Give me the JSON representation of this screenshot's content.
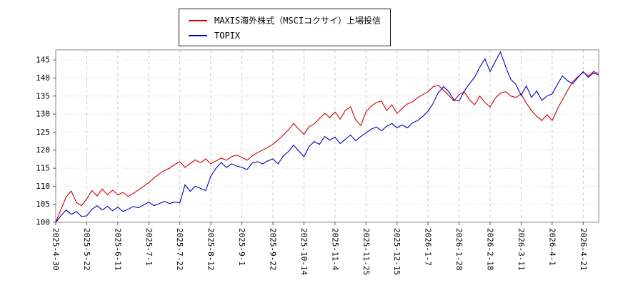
{
  "chart_data": {
    "type": "line",
    "title": "",
    "xlabel": "",
    "ylabel": "",
    "grid": true,
    "legend_position": "top-center",
    "ylim": [
      100,
      147.8
    ],
    "y_ticks": [
      100,
      105,
      110,
      115,
      120,
      125,
      130,
      135,
      140,
      145
    ],
    "points_per_tick": 6,
    "x_tick_labels": [
      "2025-4-30",
      "2025-5-22",
      "2025-6-11",
      "2025-7-1",
      "2025-7-22",
      "2025-8-12",
      "2025-9-1",
      "2025-9-22",
      "2025-10-14",
      "2025-11-4",
      "2025-11-25",
      "2025-12-15",
      "2026-1-7",
      "2026-1-28",
      "2026-2-18",
      "2026-3-11",
      "2026-4-1",
      "2026-4-21"
    ],
    "series": [
      {
        "name": "MAXIS海外株式（MSCIコクサイ）上場投信",
        "color": "#cc0000",
        "values": [
          100,
          103.5,
          107.0,
          108.7,
          105.5,
          104.6,
          106.5,
          108.8,
          107.3,
          109.2,
          107.6,
          108.9,
          107.6,
          108.3,
          107.2,
          108.0,
          109.0,
          110.0,
          111.0,
          112.3,
          113.4,
          114.3,
          115.0,
          116.0,
          116.8,
          115.2,
          116.3,
          117.3,
          116.5,
          117.6,
          116.2,
          117.0,
          117.8,
          117.2,
          118.2,
          118.6,
          118.0,
          117.2,
          118.4,
          119.3,
          120.0,
          120.8,
          121.6,
          122.8,
          124.2,
          125.6,
          127.4,
          125.8,
          124.4,
          126.5,
          127.3,
          128.8,
          130.2,
          129.0,
          130.6,
          128.6,
          131.0,
          132.0,
          128.4,
          126.8,
          130.6,
          132.2,
          133.2,
          133.6,
          131.0,
          132.6,
          130.2,
          131.6,
          132.8,
          133.4,
          134.6,
          135.4,
          136.2,
          137.6,
          138.0,
          136.6,
          135.2,
          133.6,
          135.4,
          136.2,
          134.0,
          132.6,
          135.0,
          133.2,
          132.0,
          134.4,
          135.8,
          136.2,
          135.0,
          134.6,
          135.6,
          133.0,
          131.0,
          129.4,
          128.2,
          129.8,
          128.2,
          131.4,
          134.0,
          136.6,
          139.0,
          140.4,
          141.6,
          140.6,
          141.8,
          141.2
        ]
      },
      {
        "name": "TOPIX",
        "color": "#0000bb",
        "values": [
          100,
          101.8,
          103.4,
          102.2,
          103.0,
          101.6,
          101.8,
          103.6,
          104.6,
          103.4,
          104.4,
          103.2,
          104.2,
          103.0,
          103.6,
          104.4,
          104.0,
          104.8,
          105.6,
          104.6,
          105.2,
          105.8,
          105.2,
          105.6,
          105.4,
          110.4,
          108.6,
          110.0,
          109.4,
          108.8,
          112.8,
          115.0,
          116.6,
          115.2,
          116.2,
          115.6,
          115.2,
          114.6,
          116.4,
          116.8,
          116.2,
          117.0,
          117.6,
          116.2,
          118.4,
          119.6,
          121.4,
          119.8,
          118.2,
          121.0,
          122.4,
          121.6,
          123.8,
          122.8,
          123.6,
          121.8,
          123.0,
          124.2,
          122.6,
          123.8,
          124.8,
          125.8,
          126.4,
          125.4,
          126.6,
          127.4,
          126.2,
          127.0,
          126.2,
          127.6,
          128.2,
          129.4,
          130.8,
          133.0,
          136.0,
          137.6,
          136.2,
          134.0,
          133.6,
          136.4,
          138.4,
          140.2,
          143.0,
          145.3,
          141.8,
          144.6,
          147.2,
          143.2,
          139.6,
          138.2,
          135.2,
          137.8,
          134.6,
          136.4,
          133.8,
          135.0,
          135.6,
          138.2,
          140.6,
          139.2,
          138.4,
          140.2,
          141.8,
          140.2,
          141.4,
          140.8
        ]
      }
    ]
  },
  "legend": {
    "item1": "MAXIS海外株式（MSCIコクサイ）上場投信",
    "item2": "TOPIX"
  }
}
